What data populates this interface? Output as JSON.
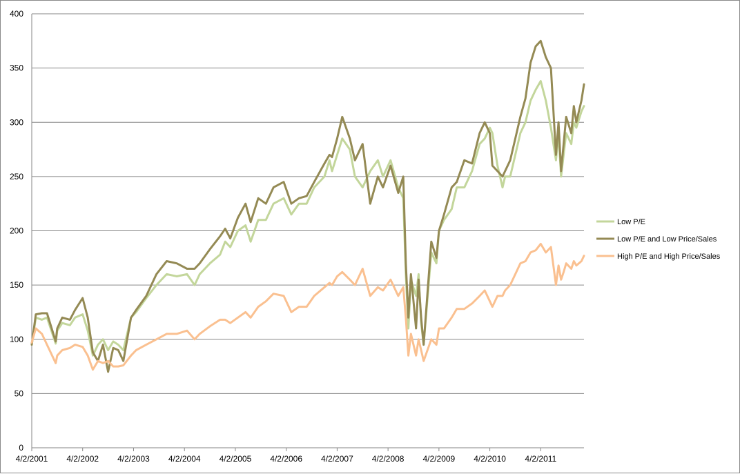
{
  "chart_data": {
    "type": "line",
    "title": "",
    "xlabel": "",
    "ylabel": "",
    "ylim": [
      0,
      400
    ],
    "yticks": [
      0,
      50,
      100,
      150,
      200,
      250,
      300,
      350,
      400
    ],
    "x_tick_labels": [
      "4/2/2001",
      "4/2/2002",
      "4/2/2003",
      "4/2/2004",
      "4/2/2005",
      "4/2/2006",
      "4/2/2007",
      "4/2/2008",
      "4/2/2009",
      "4/2/2010",
      "4/2/2011"
    ],
    "xlim": [
      2001.25,
      2012.1
    ],
    "grid": "horizontal",
    "legend_position": "right",
    "series": [
      {
        "name": "Low P/E",
        "color": "#c3d69b",
        "x": [
          2001.25,
          2001.33,
          2001.45,
          2001.55,
          2001.72,
          2001.75,
          2001.85,
          2002.0,
          2002.1,
          2002.25,
          2002.35,
          2002.45,
          2002.55,
          2002.65,
          2002.75,
          2002.85,
          2002.95,
          2003.05,
          2003.2,
          2003.3,
          2003.5,
          2003.7,
          2003.9,
          2004.1,
          2004.3,
          2004.45,
          2004.55,
          2004.75,
          2004.95,
          2005.05,
          2005.15,
          2005.3,
          2005.45,
          2005.55,
          2005.7,
          2005.85,
          2006.0,
          2006.2,
          2006.35,
          2006.5,
          2006.65,
          2006.8,
          2007.0,
          2007.1,
          2007.15,
          2007.25,
          2007.35,
          2007.5,
          2007.6,
          2007.75,
          2007.9,
          2008.05,
          2008.15,
          2008.3,
          2008.45,
          2008.55,
          2008.6,
          2008.65,
          2008.7,
          2008.8,
          2008.85,
          2008.9,
          2008.95,
          2009.1,
          2009.2,
          2009.25,
          2009.35,
          2009.5,
          2009.6,
          2009.75,
          2009.9,
          2010.05,
          2010.15,
          2010.25,
          2010.3,
          2010.4,
          2010.5,
          2010.55,
          2010.65,
          2010.75,
          2010.85,
          2010.95,
          2011.05,
          2011.15,
          2011.25,
          2011.35,
          2011.45,
          2011.55,
          2011.6,
          2011.65,
          2011.7,
          2011.75,
          2011.85,
          2011.9,
          2011.95,
          2012.05,
          2012.1
        ],
        "y": [
          95,
          120,
          118,
          120,
          96,
          108,
          115,
          113,
          120,
          123,
          108,
          85,
          95,
          100,
          90,
          98,
          95,
          90,
          120,
          125,
          138,
          150,
          160,
          158,
          160,
          150,
          160,
          170,
          178,
          190,
          185,
          200,
          205,
          190,
          210,
          210,
          225,
          230,
          215,
          225,
          225,
          240,
          250,
          265,
          255,
          270,
          285,
          275,
          250,
          240,
          255,
          265,
          250,
          265,
          240,
          230,
          160,
          110,
          155,
          140,
          160,
          115,
          95,
          180,
          170,
          200,
          210,
          220,
          240,
          240,
          255,
          280,
          285,
          295,
          290,
          260,
          240,
          250,
          250,
          270,
          290,
          300,
          320,
          330,
          338,
          320,
          295,
          265,
          290,
          250,
          270,
          290,
          280,
          300,
          295,
          310,
          315
        ]
      },
      {
        "name": "Low P/E and Low Price/Sales",
        "color": "#948a54",
        "x": [
          2001.25,
          2001.33,
          2001.45,
          2001.55,
          2001.72,
          2001.75,
          2001.85,
          2002.0,
          2002.1,
          2002.25,
          2002.35,
          2002.45,
          2002.55,
          2002.65,
          2002.75,
          2002.85,
          2002.95,
          2003.05,
          2003.2,
          2003.3,
          2003.5,
          2003.7,
          2003.9,
          2004.1,
          2004.3,
          2004.45,
          2004.55,
          2004.75,
          2004.95,
          2005.05,
          2005.15,
          2005.3,
          2005.45,
          2005.55,
          2005.7,
          2005.85,
          2006.0,
          2006.2,
          2006.35,
          2006.5,
          2006.65,
          2006.8,
          2007.0,
          2007.1,
          2007.15,
          2007.25,
          2007.35,
          2007.5,
          2007.6,
          2007.75,
          2007.9,
          2008.05,
          2008.15,
          2008.3,
          2008.45,
          2008.55,
          2008.6,
          2008.65,
          2008.7,
          2008.8,
          2008.85,
          2008.9,
          2008.95,
          2009.1,
          2009.2,
          2009.25,
          2009.35,
          2009.5,
          2009.6,
          2009.75,
          2009.9,
          2010.05,
          2010.15,
          2010.25,
          2010.3,
          2010.4,
          2010.5,
          2010.55,
          2010.65,
          2010.75,
          2010.85,
          2010.95,
          2011.05,
          2011.15,
          2011.25,
          2011.35,
          2011.45,
          2011.55,
          2011.6,
          2011.65,
          2011.7,
          2011.75,
          2011.85,
          2011.9,
          2011.95,
          2012.05,
          2012.1
        ],
        "y": [
          95,
          123,
          124,
          124,
          98,
          110,
          120,
          118,
          127,
          138,
          120,
          88,
          80,
          95,
          70,
          92,
          90,
          80,
          120,
          127,
          140,
          160,
          172,
          170,
          165,
          165,
          170,
          183,
          195,
          202,
          193,
          212,
          225,
          208,
          230,
          225,
          240,
          245,
          225,
          230,
          232,
          245,
          262,
          270,
          268,
          285,
          305,
          285,
          265,
          280,
          225,
          250,
          240,
          260,
          235,
          250,
          170,
          120,
          160,
          110,
          155,
          120,
          95,
          190,
          175,
          200,
          215,
          240,
          245,
          265,
          262,
          290,
          300,
          290,
          260,
          255,
          250,
          255,
          265,
          285,
          305,
          322,
          355,
          370,
          375,
          360,
          350,
          270,
          300,
          255,
          280,
          305,
          290,
          315,
          300,
          320,
          335
        ]
      },
      {
        "name": "High P/E and High Price/Sales",
        "color": "#fac090",
        "x": [
          2001.25,
          2001.33,
          2001.45,
          2001.55,
          2001.72,
          2001.75,
          2001.85,
          2002.0,
          2002.1,
          2002.25,
          2002.35,
          2002.45,
          2002.55,
          2002.65,
          2002.75,
          2002.85,
          2002.95,
          2003.05,
          2003.2,
          2003.3,
          2003.5,
          2003.7,
          2003.9,
          2004.1,
          2004.3,
          2004.45,
          2004.55,
          2004.75,
          2004.95,
          2005.05,
          2005.15,
          2005.3,
          2005.45,
          2005.55,
          2005.7,
          2005.85,
          2006.0,
          2006.2,
          2006.35,
          2006.5,
          2006.65,
          2006.8,
          2007.0,
          2007.1,
          2007.15,
          2007.25,
          2007.35,
          2007.5,
          2007.6,
          2007.75,
          2007.9,
          2008.05,
          2008.15,
          2008.3,
          2008.45,
          2008.55,
          2008.6,
          2008.65,
          2008.7,
          2008.8,
          2008.85,
          2008.9,
          2008.95,
          2009.1,
          2009.2,
          2009.25,
          2009.35,
          2009.5,
          2009.6,
          2009.75,
          2009.9,
          2010.05,
          2010.15,
          2010.25,
          2010.3,
          2010.4,
          2010.5,
          2010.55,
          2010.65,
          2010.75,
          2010.85,
          2010.95,
          2011.05,
          2011.15,
          2011.25,
          2011.35,
          2011.45,
          2011.55,
          2011.6,
          2011.65,
          2011.7,
          2011.75,
          2011.85,
          2011.9,
          2011.95,
          2012.05,
          2012.1
        ],
        "y": [
          97,
          110,
          105,
          95,
          78,
          85,
          90,
          92,
          95,
          93,
          85,
          72,
          80,
          78,
          80,
          75,
          75,
          76,
          85,
          90,
          95,
          100,
          105,
          105,
          108,
          100,
          105,
          112,
          118,
          118,
          115,
          120,
          125,
          120,
          130,
          135,
          142,
          140,
          125,
          130,
          130,
          140,
          148,
          152,
          150,
          158,
          162,
          155,
          150,
          165,
          140,
          148,
          145,
          155,
          140,
          148,
          120,
          85,
          105,
          85,
          100,
          90,
          80,
          100,
          95,
          110,
          110,
          120,
          128,
          128,
          133,
          140,
          145,
          135,
          130,
          140,
          140,
          145,
          150,
          160,
          170,
          172,
          180,
          182,
          188,
          180,
          185,
          150,
          168,
          155,
          162,
          170,
          165,
          172,
          168,
          172,
          177
        ]
      }
    ]
  }
}
